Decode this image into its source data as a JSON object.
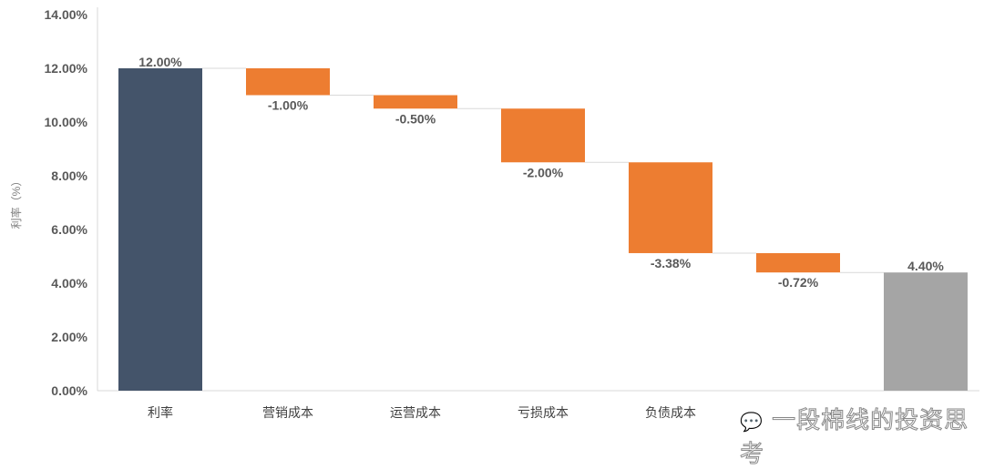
{
  "chart_data": {
    "type": "waterfall",
    "ylabel": "利率（%）",
    "ylim": [
      0,
      14
    ],
    "yticks": [
      "0.00%",
      "2.00%",
      "4.00%",
      "6.00%",
      "8.00%",
      "10.00%",
      "12.00%",
      "14.00%"
    ],
    "grid": false,
    "categories": [
      "利率",
      "营销成本",
      "运营成本",
      "亏损成本",
      "负债成本",
      "",
      ""
    ],
    "values": [
      12.0,
      -1.0,
      -0.5,
      -2.0,
      -3.38,
      -0.72,
      4.4
    ],
    "labels": [
      "12.00%",
      "-1.00%",
      "-0.50%",
      "-2.00%",
      "-3.38%",
      "-0.72%",
      "4.40%"
    ],
    "kinds": [
      "total",
      "decrease",
      "decrease",
      "decrease",
      "decrease",
      "decrease",
      "total"
    ],
    "colors": {
      "start": "#44546a",
      "decrease": "#ed7d31",
      "end": "#a5a5a5",
      "connector": "#d9d9d9",
      "axis": "#d9d9d9"
    }
  },
  "watermark": {
    "text": "一段棉线的投资思考",
    "icon": "wechat-icon"
  }
}
